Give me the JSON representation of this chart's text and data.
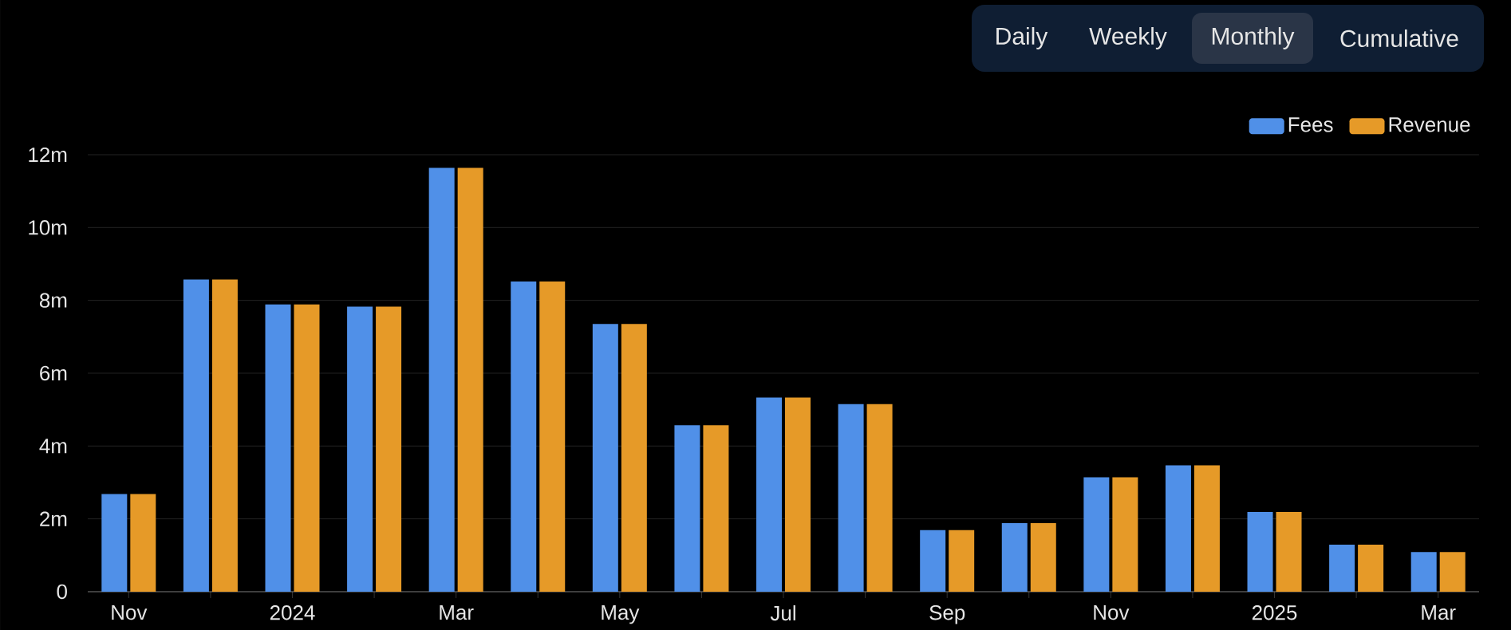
{
  "chart_data": {
    "type": "bar",
    "categories": [
      "Nov",
      null,
      "2024",
      null,
      "Mar",
      null,
      "May",
      null,
      "Jul",
      null,
      "Sep",
      null,
      "Nov",
      null,
      "2025",
      null,
      "Mar"
    ],
    "series": [
      {
        "name": "Fees",
        "color": "#5090e8",
        "values": [
          2.68,
          8.57,
          7.89,
          7.83,
          11.64,
          8.52,
          7.35,
          4.57,
          5.33,
          5.15,
          1.69,
          1.88,
          3.14,
          3.47,
          2.19,
          1.29,
          1.09
        ]
      },
      {
        "name": "Revenue",
        "color": "#e69a28",
        "values": [
          2.68,
          8.57,
          7.89,
          7.83,
          11.64,
          8.52,
          7.35,
          4.57,
          5.33,
          5.15,
          1.69,
          1.88,
          3.14,
          3.47,
          2.19,
          1.29,
          1.09
        ]
      }
    ],
    "ylim": [
      0,
      12
    ],
    "yticks": [
      0,
      {
        "value": 2,
        "label": "2m"
      },
      {
        "value": 4,
        "label": "4m"
      },
      {
        "value": 6,
        "label": "6m"
      },
      {
        "value": 8,
        "label": "8m"
      },
      {
        "value": 10,
        "label": "10m"
      },
      {
        "value": 12,
        "label": "12m"
      }
    ],
    "grid": "y",
    "legend": "top right",
    "annotations": [
      "Daily",
      "Weekly",
      "Monthly",
      "Cumulative"
    ]
  }
}
